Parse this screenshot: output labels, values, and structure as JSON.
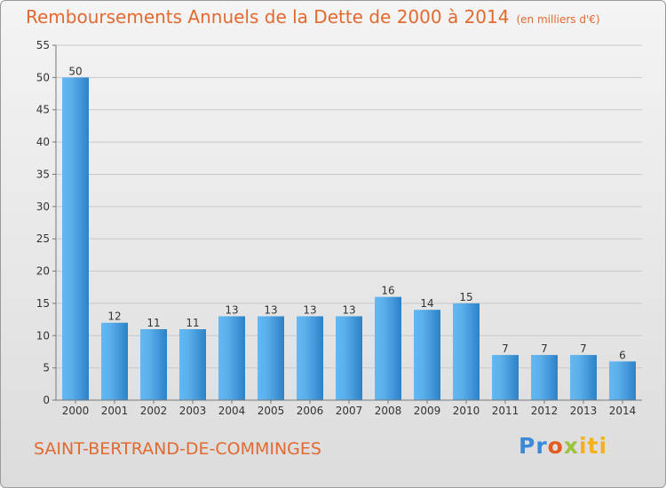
{
  "header": {
    "title": "Remboursements Annuels de la Dette de 2000 à 2014",
    "unit": "(en milliers d'€)"
  },
  "footer": {
    "commune": "SAINT-BERTRAND-DE-COMMINGES",
    "logo": "Proxiti",
    "logo_colors": [
      "#3a8ad8",
      "#e35b1e",
      "#9bc43c",
      "#f2b21b"
    ]
  },
  "colors": {
    "bar_light": "#64b8f2",
    "bar_dark": "#2c82c6",
    "title": "#e2692f",
    "grid": "#c8c8c8"
  },
  "chart_data": {
    "type": "bar",
    "title": "Remboursements Annuels de la Dette de 2000 à 2014",
    "categories": [
      "2000",
      "2001",
      "2002",
      "2003",
      "2004",
      "2005",
      "2006",
      "2007",
      "2008",
      "2009",
      "2010",
      "2011",
      "2012",
      "2013",
      "2014"
    ],
    "values": [
      50,
      12,
      11,
      11,
      13,
      13,
      13,
      13,
      16,
      14,
      15,
      7,
      7,
      7,
      6
    ],
    "ylim": [
      0,
      55
    ],
    "yticks": [
      0,
      5,
      10,
      15,
      20,
      25,
      30,
      35,
      40,
      45,
      50,
      55
    ],
    "grid": true,
    "data_labels": true
  }
}
